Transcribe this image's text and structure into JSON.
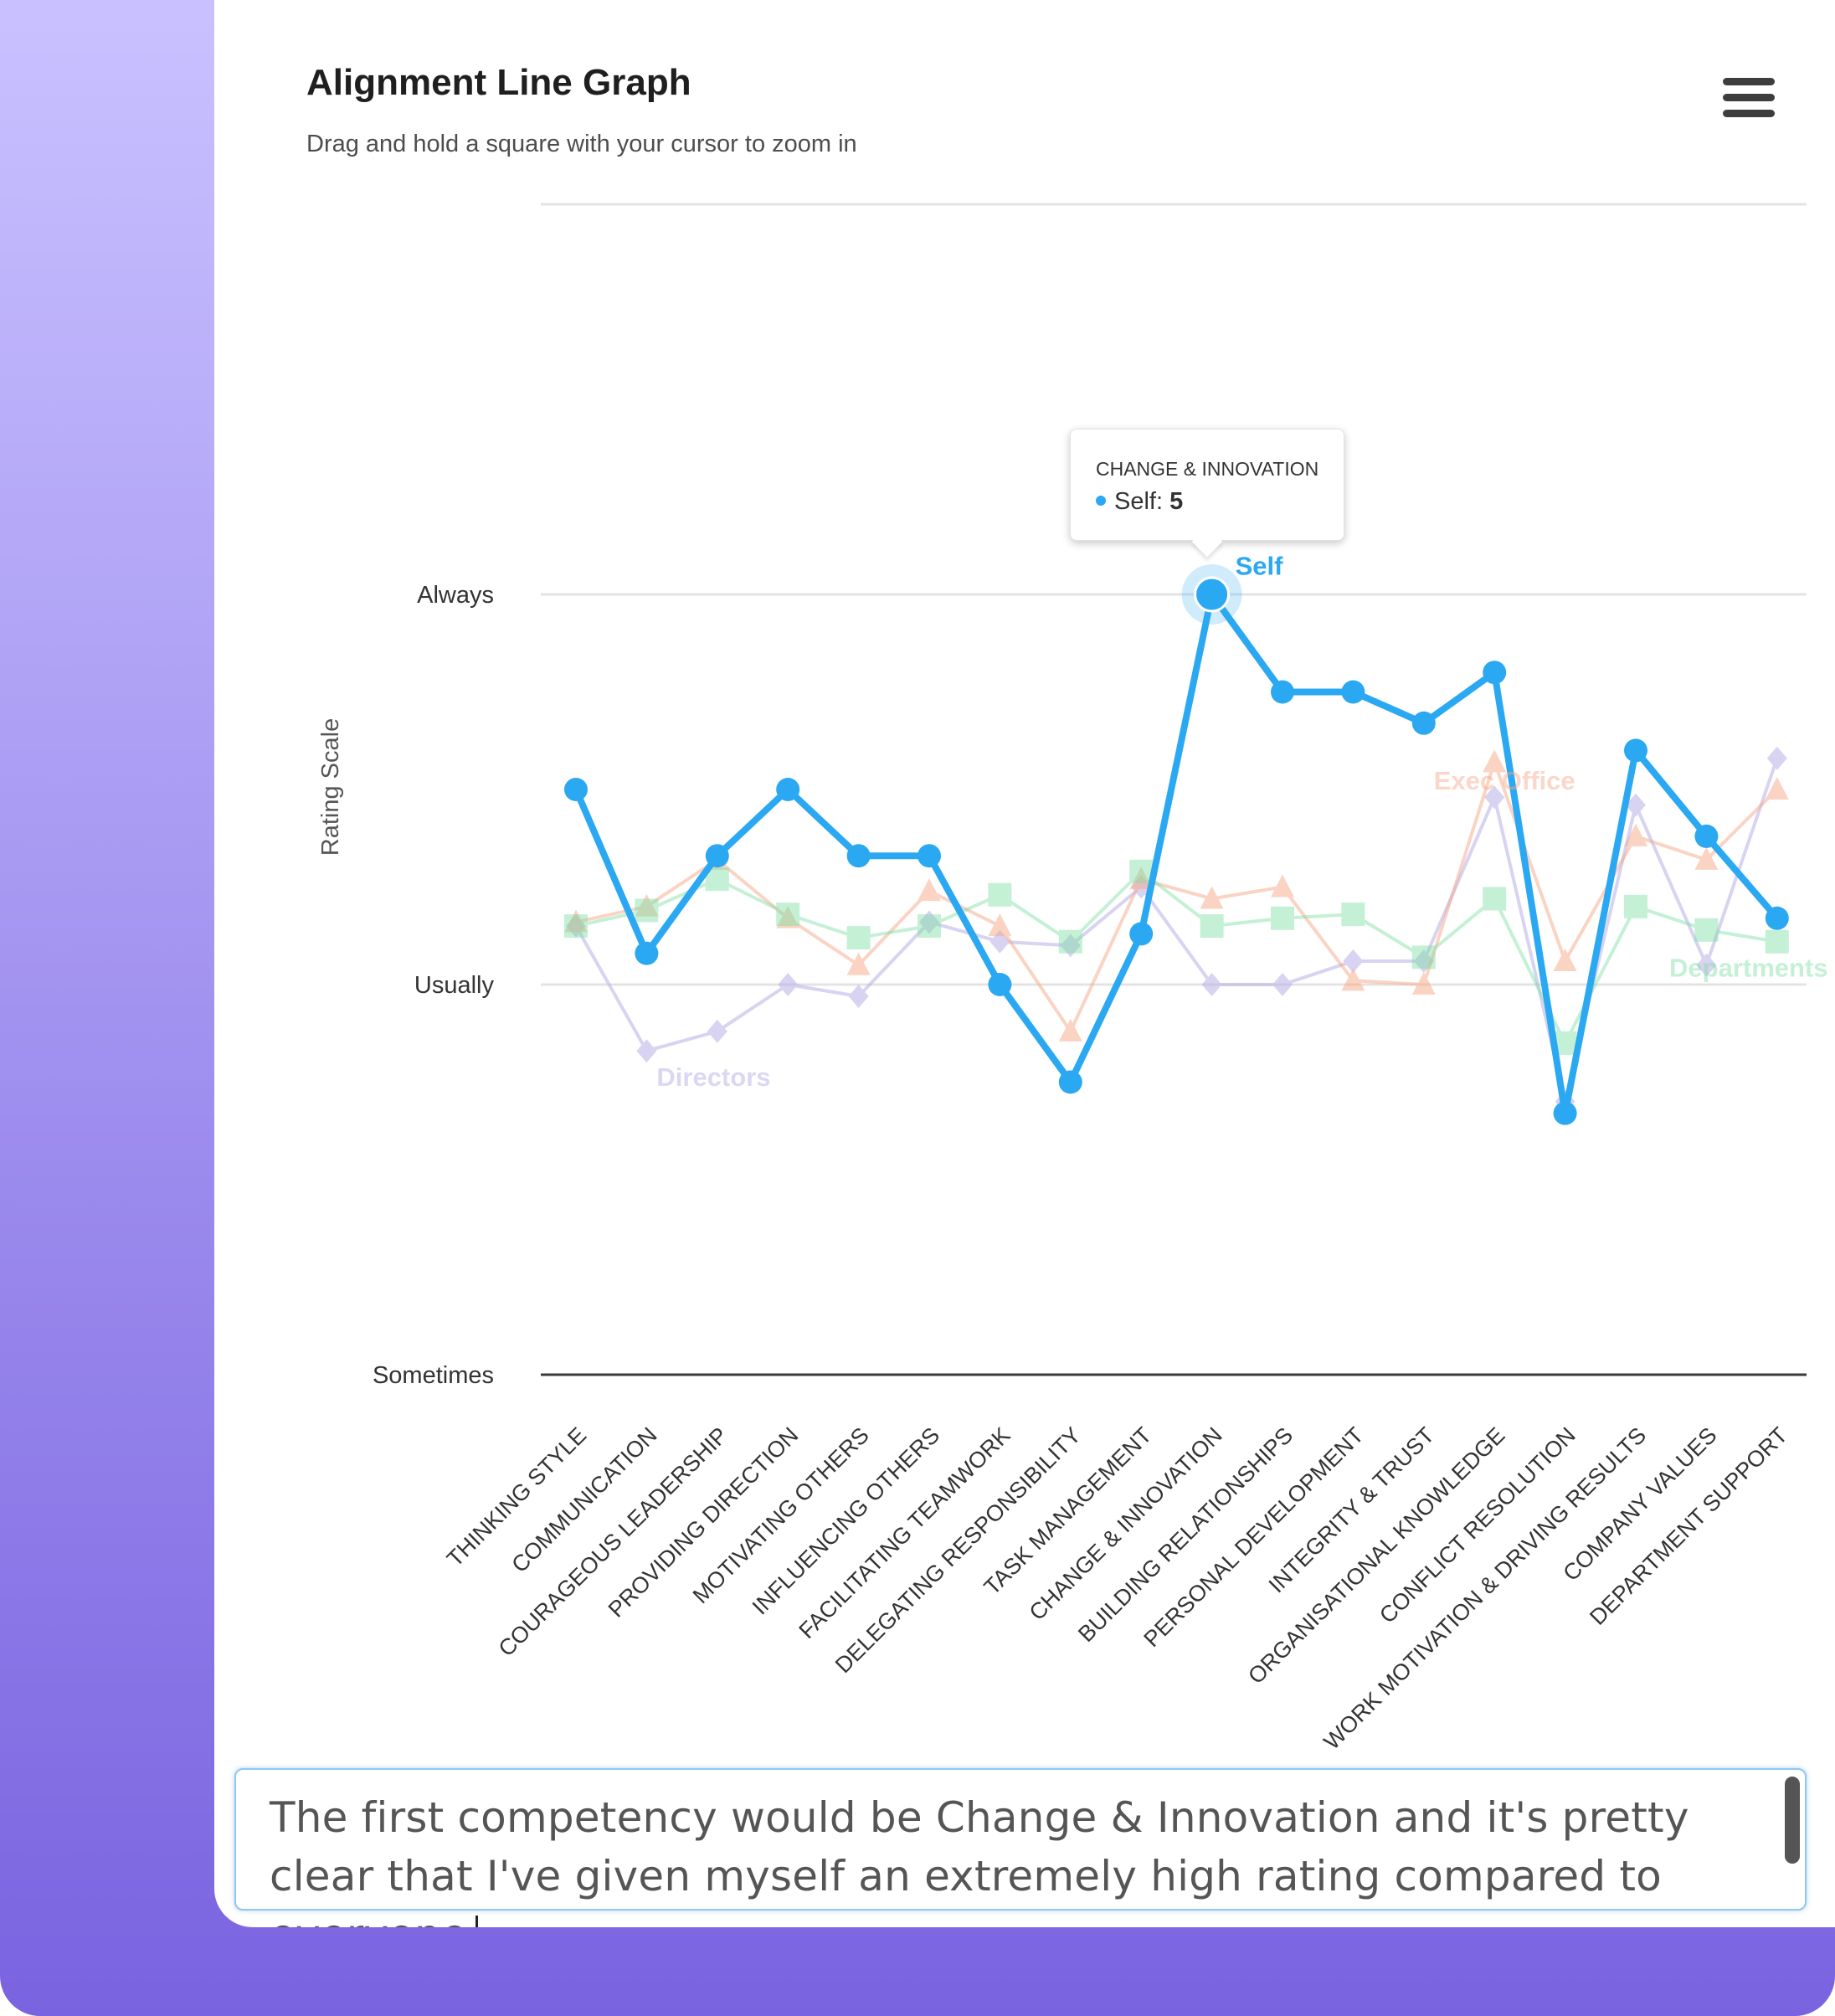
{
  "header": {
    "title": "Alignment Line Graph",
    "subtitle": "Drag and hold a square with your cursor to zoom in",
    "menu_icon": "hamburger-menu-icon"
  },
  "colors": {
    "self": "#2ba8f2",
    "exec_office": "#f7a889",
    "departments": "#7ee0a3",
    "directors": "#b7b0e6"
  },
  "tooltip": {
    "title": "CHANGE & INNOVATION",
    "series": "Self:",
    "value": "5"
  },
  "chart_data": {
    "type": "line",
    "title": "Alignment Line Graph",
    "subtitle": "Drag and hold a square with your cursor to zoom in",
    "xlabel": "",
    "ylabel": "Rating Scale",
    "ylim": [
      3,
      6
    ],
    "yticks": [
      {
        "value": 3,
        "label": "Sometimes"
      },
      {
        "value": 4,
        "label": "Usually"
      },
      {
        "value": 5,
        "label": "Always"
      }
    ],
    "grid": true,
    "categories": [
      "THINKING STYLE",
      "COMMUNICATION",
      "COURAGEOUS LEADERSHIP",
      "PROVIDING DIRECTION",
      "MOTIVATING OTHERS",
      "INFLUENCING OTHERS",
      "FACILITATING TEAMWORK",
      "DELEGATING RESPONSIBILITY",
      "TASK MANAGEMENT",
      "CHANGE & INNOVATION",
      "BUILDING RELATIONSHIPS",
      "PERSONAL DEVELOPMENT",
      "INTEGRITY & TRUST",
      "ORGANISATIONAL KNOWLEDGE",
      "CONFLICT RESOLUTION",
      "WORK MOTIVATION & DRIVING RESULTS",
      "COMPANY VALUES",
      "DEPARTMENT SUPPORT"
    ],
    "series": [
      {
        "name": "Directors",
        "marker": "diamond",
        "values": [
          4.15,
          3.83,
          3.88,
          4.0,
          3.97,
          4.16,
          4.11,
          4.1,
          4.25,
          4.0,
          4.0,
          4.06,
          4.06,
          4.48,
          3.7,
          4.46,
          4.05,
          4.58
        ]
      },
      {
        "name": "Exec Office",
        "marker": "triangle",
        "values": [
          4.16,
          4.2,
          4.32,
          4.17,
          4.05,
          4.24,
          4.15,
          3.88,
          4.27,
          4.22,
          4.25,
          4.01,
          4.0,
          4.57,
          4.06,
          4.38,
          4.32,
          4.5
        ]
      },
      {
        "name": "Departments",
        "marker": "square",
        "values": [
          4.15,
          4.19,
          4.27,
          4.18,
          4.12,
          4.15,
          4.23,
          4.11,
          4.29,
          4.15,
          4.17,
          4.18,
          4.07,
          4.22,
          3.85,
          4.2,
          4.14,
          4.11
        ]
      },
      {
        "name": "Self",
        "marker": "circle",
        "values": [
          4.5,
          4.08,
          4.33,
          4.5,
          4.33,
          4.33,
          4.0,
          3.75,
          4.13,
          5.0,
          4.75,
          4.75,
          4.67,
          4.8,
          3.67,
          4.6,
          4.38,
          4.17
        ]
      }
    ],
    "highlight": {
      "series": "Self",
      "category": "CHANGE & INNOVATION",
      "value": 5
    }
  },
  "textbox": {
    "text": "The first competency would be Change & Innovation and it's pretty clear that I've given myself an extremely high rating compared to everyone"
  }
}
